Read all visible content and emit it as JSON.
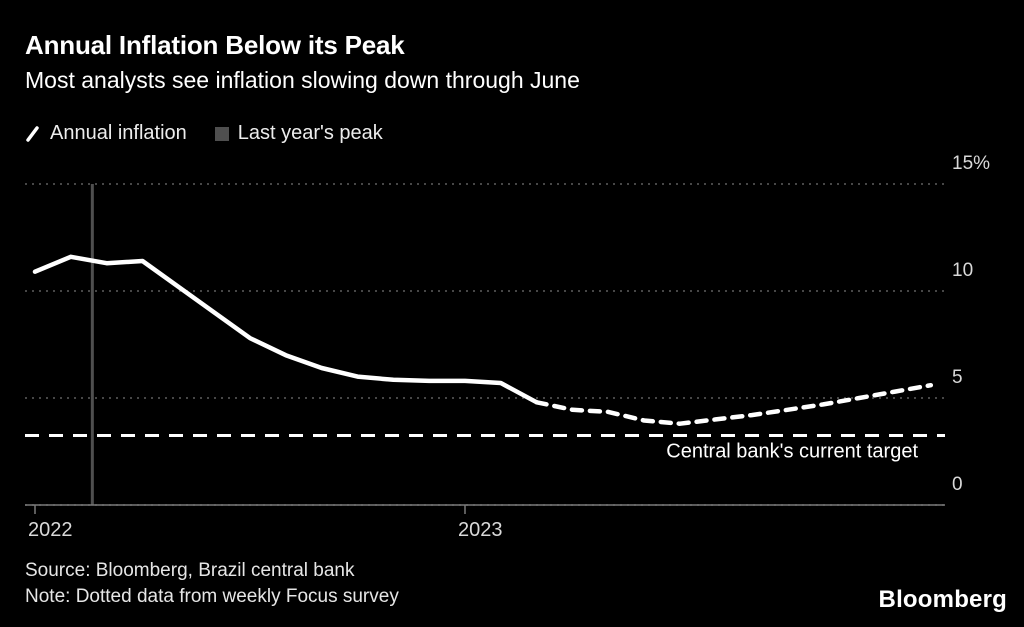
{
  "header": {
    "title": "Annual Inflation Below its Peak",
    "subtitle": "Most analysts see inflation slowing down through June"
  },
  "legend": {
    "items": [
      {
        "label": "Annual inflation",
        "marker": "slash"
      },
      {
        "label": "Last year's peak",
        "marker": "square"
      }
    ]
  },
  "colors": {
    "background": "#000000",
    "line": "#ffffff",
    "grid": "#5f5f5f",
    "axis": "#7a7a7a",
    "axis_text": "#d9d9d9",
    "peak_marker": "#4f4f4f",
    "annotation_text": "#ffffff"
  },
  "chart_data": {
    "type": "line",
    "title": "Annual Inflation Below its Peak",
    "subtitle": "Most analysts see inflation slowing down through June",
    "unit": "%",
    "grid": "dotted-horizontal",
    "x": [
      "Jan 2022",
      "Feb 2022",
      "Mar 2022",
      "Apr 2022",
      "May 2022",
      "Jun 2022",
      "Jul 2022",
      "Aug 2022",
      "Sep 2022",
      "Oct 2022",
      "Nov 2022",
      "Dec 2022",
      "Jan 2023",
      "Feb 2023",
      "Mar 2023",
      "Apr 2023",
      "May 2023",
      "Jun 2023",
      "Jul 2023",
      "Aug 2023",
      "Sep 2023",
      "Oct 2023",
      "Nov 2023",
      "Dec 2023",
      "Jan 2024",
      "Feb 2024"
    ],
    "series": [
      {
        "name": "Annual inflation (reported)",
        "style": "solid",
        "start_index": 0,
        "values": [
          10.9,
          11.6,
          11.3,
          11.4,
          10.2,
          9.0,
          7.8,
          7.0,
          6.4,
          6.0,
          5.85,
          5.8,
          5.8,
          5.7,
          4.8
        ]
      },
      {
        "name": "Annual inflation (dotted: weekly Focus survey forecast)",
        "style": "dashed",
        "start_index": 14,
        "values": [
          4.8,
          4.45,
          4.35,
          3.95,
          3.8,
          4.0,
          4.2,
          4.45,
          4.7,
          5.0,
          5.3,
          5.6
        ]
      }
    ],
    "target_line": {
      "value": 3.25,
      "label": "Central bank's current target"
    },
    "peak_marker": {
      "name": "Last year's peak",
      "month_index": 1.6
    },
    "y_axis": {
      "min": 0,
      "max": 15,
      "ticks": [
        0,
        5,
        10,
        15
      ],
      "tick_labels": [
        "0",
        "5",
        "10",
        "15%"
      ]
    },
    "x_axis": {
      "ticks": [
        {
          "label": "2022",
          "month_index": 0
        },
        {
          "label": "2023",
          "month_index": 12
        }
      ]
    },
    "legend_position": "top-left"
  },
  "footer": {
    "source": "Source: Bloomberg, Brazil central bank",
    "note": "Note: Dotted data from weekly Focus survey",
    "logo": "Bloomberg"
  }
}
